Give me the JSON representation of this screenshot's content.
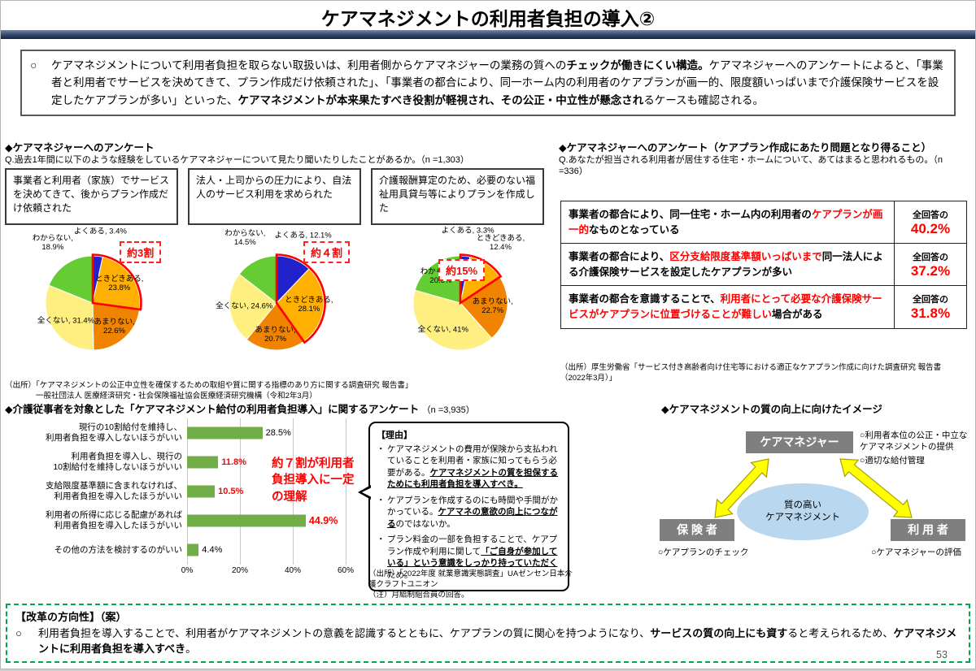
{
  "title": "ケアマネジメントの利用者負担の導入②",
  "page_number": "53",
  "summary": {
    "marker": "○",
    "rich": [
      {
        "t": "ケアマネジメントについて利用者負担を取らない取扱いは、利用者側からケアマネジャーの業務の質への"
      },
      {
        "t": "チェックが働きにくい構造。",
        "b": true
      },
      {
        "t": "ケアマネジャーへのアンケートによると、「事業者と利用者でサービスを決めてきて、プラン作成だけ依頼された」、「事業者の都合により、同一ホーム内の利用者のケアプランが画一的、限度額いっぱいまで介護保険サービスを設定したケアプランが多い」といった、"
      },
      {
        "t": "ケアマネジメントが本来果たすべき役割が軽視され、その公正・中立性が懸念され",
        "b": true
      },
      {
        "t": "るケースも確認される。"
      }
    ]
  },
  "left_survey": {
    "heading": "◆ケアマネジャーへのアンケート",
    "question": "Q.過去1年間に以下のような経験をしているケアマネジャーについて見たり聞いたりしたことがあるか。（n =1,303）",
    "source": "（出所）「ケアマネジメントの公正中立性を確保するための取組や質に関する指標のあり方に関する調査研究 報告書」\n　　　　一般社団法人 医療経済研究・社会保険福祉協会医療経済研究機構（令和2年3月）"
  },
  "right_survey": {
    "heading": "◆ケアマネジャーへのアンケート（ケアプラン作成にあたり問題となり得ること）",
    "question": "Q.あなたが担当される利用者が居住する住宅・ホームについて、あてはまると思われるもの。（n =336）",
    "value_prefix": "全回答の",
    "rows": [
      {
        "rich": [
          {
            "t": "事業者の都合により、同一住宅・ホーム内の利用者の",
            "b": true
          },
          {
            "t": "ケアプランが画一的",
            "b": true,
            "r": true
          },
          {
            "t": "なものとなっている",
            "b": true
          }
        ],
        "value": "40.2%"
      },
      {
        "rich": [
          {
            "t": "事業者の都合により、",
            "b": true
          },
          {
            "t": "区分支給限度基準額いっぱいまで",
            "b": true,
            "r": true
          },
          {
            "t": "同一法人による介護保険サービスを設定したケアプランが多い",
            "b": true
          }
        ],
        "value": "37.2%"
      },
      {
        "rich": [
          {
            "t": "事業者の都合を意識することで、",
            "b": true
          },
          {
            "t": "利用者にとって必要な介護保険サービスがケアプランに位置づけることが難しい",
            "b": true,
            "r": true
          },
          {
            "t": "場合がある",
            "b": true
          }
        ],
        "value": "31.8%"
      }
    ],
    "source": "（出所）厚生労働省「サービス付き高齢者向け住宅等における適正なケアプラン作成に向けた調査研究 報告書\n（2022年3月）」"
  },
  "bar_section": {
    "heading": "◆介護従事者を対象とした「ケアマネジメント給付の利用者負担導入」に関するアンケート",
    "n_label": "（n =3,935）",
    "source_line1": "（出所）「2022年度 就業意識実態調査」UAゼンセン日本介護クラフトユニオン",
    "source_line2": "（注）月給制組合員の回答。"
  },
  "reasons": {
    "heading": "【理由】",
    "marker": "・",
    "bullets": [
      {
        "rich": [
          {
            "t": "ケアマネジメントの費用が保険から支払われていることを利用者・家族に知ってもらう必要がある。"
          },
          {
            "t": "ケアマネジメントの質を担保するためにも利用者負担を導入すべき。",
            "b": true,
            "u": true
          }
        ]
      },
      {
        "rich": [
          {
            "t": "ケアプランを作成するのにも時間や手間がかかっている。"
          },
          {
            "t": "ケアマネの意欲の向上につながる",
            "b": true,
            "u": true
          },
          {
            "t": "のではないか。"
          }
        ]
      },
      {
        "rich": [
          {
            "t": "プラン料金の一部を負担することで、ケアプラン作成や利用に関して"
          },
          {
            "t": "「ご自身が参加している」という意識をしっかり持っていただく",
            "b": true,
            "u": true
          },
          {
            "t": "ため。"
          }
        ]
      }
    ]
  },
  "diagram": {
    "heading": "◆ケアマネジメントの質の向上に向けたイメージ",
    "top_box": "ケアマネジャー",
    "top_notes": [
      "○利用者本位の公正・中立なケアマネジメントの提供",
      "○適切な給付管理"
    ],
    "center": "質の高い\nケアマネジメント",
    "left_box": "保 険 者",
    "left_note": "○ケアプランのチェック",
    "right_box": "利 用 者",
    "right_note": "○ケアマネジャーの評価"
  },
  "direction_box": {
    "heading": "【改革の方向性】（案）",
    "marker": "○",
    "rich": [
      {
        "t": "利用者負担を導入することで、利用者がケアマネジメントの意義を認識するとともに、ケアプランの質に関心を持つようになり、"
      },
      {
        "t": "サービスの質の向上にも資す",
        "b": true
      },
      {
        "t": "ると考えられるため、"
      },
      {
        "t": "ケアマネジメントに利用者負担を導入すべき",
        "b": true
      },
      {
        "t": "。"
      }
    ]
  },
  "pie_colors": {
    "よくある": "#2222CC",
    "ときどきある": "#FFB000",
    "あまりない": "#F08300",
    "全くない": "#FFEF80",
    "わからない": "#66CC33"
  },
  "chart_data": [
    {
      "type": "pie",
      "question_box": "事業者と利用者（家族）でサービスを決めてきて、後からプラン作成だけ依頼された",
      "highlight_label": "約3割",
      "highlight_segments": 2,
      "segments": [
        {
          "label": "よくある",
          "value": 3.4
        },
        {
          "label": "ときどきある",
          "value": 23.8
        },
        {
          "label": "あまりない",
          "value": 22.6
        },
        {
          "label": "全くない",
          "value": 31.4
        },
        {
          "label": "わからない",
          "value": 18.9
        }
      ]
    },
    {
      "type": "pie",
      "question_box": "法人・上司からの圧力により、自法人のサービス利用を求められた",
      "highlight_label": "約４割",
      "highlight_segments": 2,
      "segments": [
        {
          "label": "よくある",
          "value": 12.1
        },
        {
          "label": "ときどきある",
          "value": 28.1
        },
        {
          "label": "あまりない",
          "value": 20.7
        },
        {
          "label": "全くない",
          "value": 24.6
        },
        {
          "label": "わからない",
          "value": 14.5
        }
      ]
    },
    {
      "type": "pie",
      "question_box": "介護報酬算定のため、必要のない福祉用具貸与等によりプランを作成した",
      "highlight_label": "約15%",
      "highlight_segments": 2,
      "segments": [
        {
          "label": "よくある",
          "value": 3.3
        },
        {
          "label": "ときどきある",
          "value": 12.4
        },
        {
          "label": "あまりない",
          "value": 22.7
        },
        {
          "label": "全くない",
          "value": 41.0
        },
        {
          "label": "わからない",
          "value": 20.6
        }
      ]
    },
    {
      "type": "bar",
      "title": "介護従事者を対象とした「ケアマネジメント給付の利用者負担導入」に関するアンケート",
      "n": 3935,
      "categories": [
        "現行の10割給付を維持し、\n利用者負担を導入しないほうがいい",
        "利用者負担を導入し、現行の\n10割給付を維持しないほうがいい",
        "支給限度基準額に含まれなければ、\n利用者負担を導入したほうがいい",
        "利用者の所得に応じる配慮があれば\n利用者負担を導入したほうがいい",
        "その他の方法を検討するのがいい"
      ],
      "values": [
        28.5,
        11.8,
        10.5,
        44.9,
        4.4
      ],
      "value_red": [
        false,
        true,
        true,
        true,
        false
      ],
      "bar_color": "#70AD47",
      "xticks": [
        "0%",
        "20%",
        "40%",
        "60%"
      ],
      "xlim": [
        0,
        60
      ],
      "annotation": "約７割が利用者負担導入に一定の理解"
    }
  ]
}
